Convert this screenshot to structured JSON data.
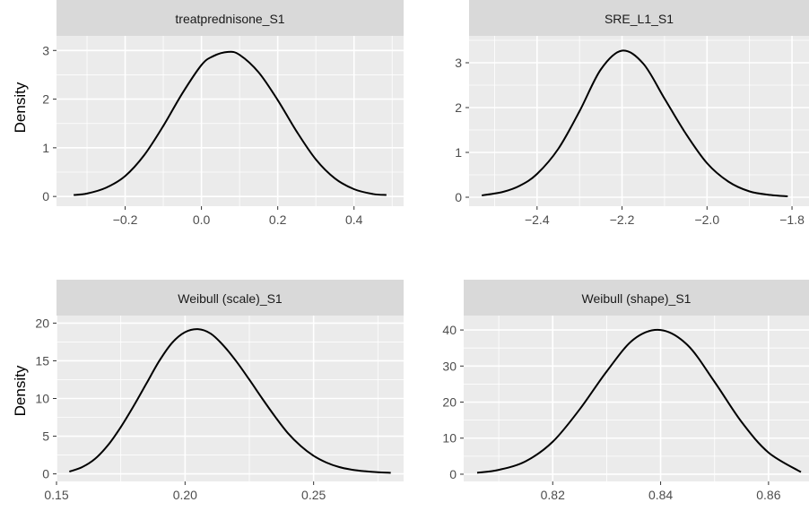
{
  "chart_data": [
    {
      "type": "line",
      "title": "treatprednisone_S1",
      "ylabel": "Density",
      "xlabel": "",
      "xlim": [
        -0.38,
        0.53
      ],
      "ylim": [
        -0.2,
        3.3
      ],
      "xticks": [
        -0.2,
        0.0,
        0.2,
        0.4
      ],
      "xtick_labels": [
        "−0.2",
        "0.0",
        "0.2",
        "0.4"
      ],
      "yticks": [
        0,
        1,
        2,
        3
      ],
      "ytick_labels": [
        "0",
        "1",
        "2",
        "3"
      ],
      "grid": true,
      "series": [
        {
          "x": [
            -0.335,
            -0.3,
            -0.25,
            -0.2,
            -0.15,
            -0.1,
            -0.05,
            0.0,
            0.03,
            0.07,
            0.1,
            0.15,
            0.2,
            0.25,
            0.3,
            0.35,
            0.4,
            0.45,
            0.485
          ],
          "y": [
            0.03,
            0.06,
            0.18,
            0.42,
            0.85,
            1.45,
            2.12,
            2.7,
            2.88,
            2.97,
            2.91,
            2.55,
            1.98,
            1.33,
            0.76,
            0.37,
            0.15,
            0.05,
            0.03
          ]
        }
      ]
    },
    {
      "type": "line",
      "title": "SRE_L1_S1",
      "ylabel": "",
      "xlabel": "",
      "xlim": [
        -2.56,
        -1.76
      ],
      "ylim": [
        -0.2,
        3.6
      ],
      "xticks": [
        -2.4,
        -2.2,
        -2.0,
        -1.8
      ],
      "xtick_labels": [
        "−2.4",
        "−2.2",
        "−2.0",
        "−1.8"
      ],
      "yticks": [
        0,
        1,
        2,
        3
      ],
      "ytick_labels": [
        "0",
        "1",
        "2",
        "3"
      ],
      "grid": true,
      "series": [
        {
          "x": [
            -2.53,
            -2.48,
            -2.44,
            -2.4,
            -2.35,
            -2.3,
            -2.25,
            -2.2,
            -2.15,
            -2.1,
            -2.05,
            -2.0,
            -1.95,
            -1.9,
            -1.85,
            -1.81
          ],
          "y": [
            0.04,
            0.12,
            0.26,
            0.52,
            1.08,
            1.92,
            2.85,
            3.27,
            2.98,
            2.2,
            1.42,
            0.76,
            0.35,
            0.13,
            0.05,
            0.02
          ]
        }
      ]
    },
    {
      "type": "line",
      "title": "Weibull (scale)_S1",
      "ylabel": "Density",
      "xlabel": "",
      "xlim": [
        0.15,
        0.285
      ],
      "ylim": [
        -1.0,
        21.0
      ],
      "xticks": [
        0.15,
        0.2,
        0.25
      ],
      "xtick_labels": [
        "0.15",
        "0.20",
        "0.25"
      ],
      "yticks": [
        0,
        5,
        10,
        15,
        20
      ],
      "ytick_labels": [
        "0",
        "5",
        "10",
        "15",
        "20"
      ],
      "grid": true,
      "series": [
        {
          "x": [
            0.155,
            0.16,
            0.165,
            0.17,
            0.175,
            0.18,
            0.185,
            0.19,
            0.195,
            0.2,
            0.205,
            0.21,
            0.215,
            0.22,
            0.225,
            0.23,
            0.235,
            0.24,
            0.245,
            0.25,
            0.255,
            0.26,
            0.265,
            0.27,
            0.275,
            0.28
          ],
          "y": [
            0.3,
            0.9,
            2.0,
            3.8,
            6.2,
            9.0,
            12.0,
            15.0,
            17.4,
            18.8,
            19.2,
            18.6,
            17.0,
            14.9,
            12.5,
            10.0,
            7.6,
            5.4,
            3.7,
            2.4,
            1.5,
            0.9,
            0.55,
            0.35,
            0.22,
            0.15
          ]
        }
      ]
    },
    {
      "type": "line",
      "title": "Weibull (shape)_S1",
      "ylabel": "",
      "xlabel": "",
      "xlim": [
        0.8035,
        0.8675
      ],
      "ylim": [
        -2.0,
        44.0
      ],
      "xticks": [
        0.82,
        0.84,
        0.86
      ],
      "xtick_labels": [
        "0.82",
        "0.84",
        "0.86"
      ],
      "yticks": [
        0,
        10,
        20,
        30,
        40
      ],
      "ytick_labels": [
        "0",
        "10",
        "20",
        "30",
        "40"
      ],
      "grid": true,
      "series": [
        {
          "x": [
            0.806,
            0.81,
            0.815,
            0.82,
            0.825,
            0.83,
            0.835,
            0.84,
            0.845,
            0.85,
            0.855,
            0.86,
            0.866
          ],
          "y": [
            0.4,
            1.2,
            3.6,
            9.0,
            18.0,
            28.5,
            37.4,
            40.0,
            35.8,
            25.6,
            14.5,
            6.0,
            0.6
          ]
        }
      ]
    }
  ]
}
